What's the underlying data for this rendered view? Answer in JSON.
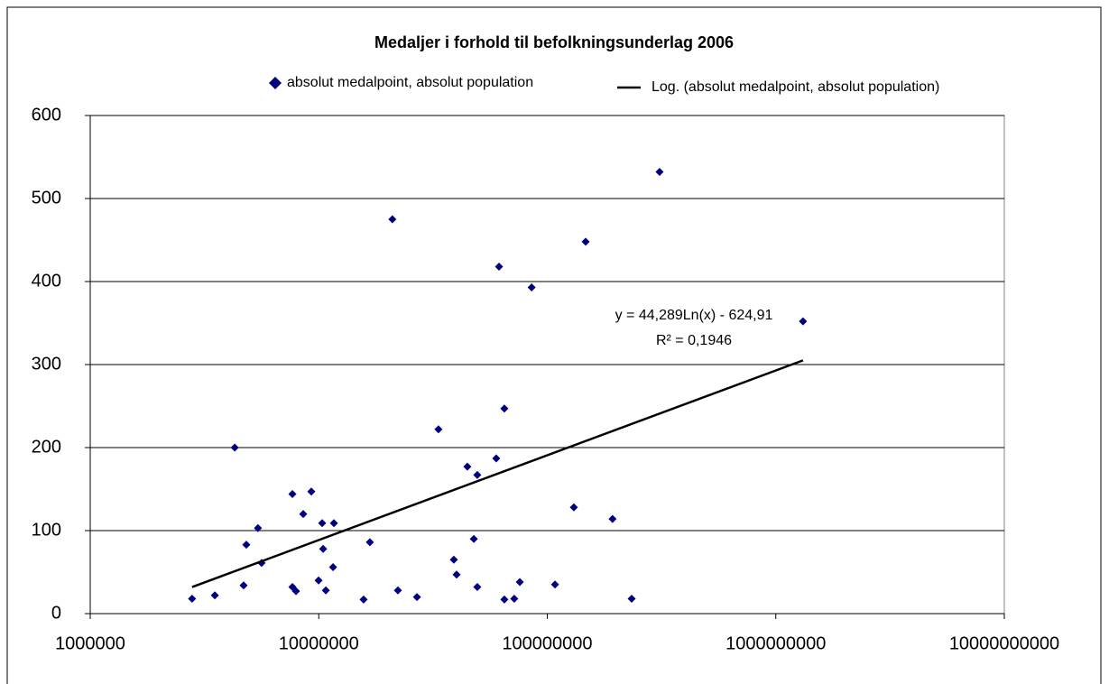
{
  "chart_data": {
    "type": "scatter",
    "title": "Medaljer i forhold til befolkningsunderlag 2006",
    "xscale": "log",
    "xlim": [
      1000000,
      10000000000
    ],
    "xticks": [
      1000000,
      10000000,
      100000000,
      1000000000,
      10000000000
    ],
    "ylim": [
      0,
      600
    ],
    "yticks": [
      0,
      100,
      200,
      300,
      400,
      500,
      600
    ],
    "grid": true,
    "legend": "top",
    "annotations": [
      "y = 44,289Ln(x) - 624,91",
      "R² = 0,1946"
    ],
    "series": [
      {
        "name": "absolut medalpoint, absolut population",
        "color": "#000080",
        "x": [
          2790000,
          3510000,
          4290000,
          4690000,
          4820000,
          5420000,
          5620000,
          7670000,
          7670000,
          7950000,
          8550000,
          9280000,
          9980000,
          10350000,
          10450000,
          10740000,
          11550000,
          11650000,
          15710000,
          16740000,
          21000000,
          22200000,
          26900000,
          33400000,
          39000000,
          40100000,
          44700000,
          47700000,
          49400000,
          49400000,
          59800000,
          61500000,
          64900000,
          64900000,
          71700000,
          75800000,
          85400000,
          108100000,
          130700000,
          147200000,
          193000000,
          234000000,
          310000000,
          1315000000
        ],
        "values": [
          18,
          22,
          200,
          34,
          83,
          103,
          61,
          144,
          32,
          27,
          120,
          147,
          40,
          109,
          78,
          28,
          56,
          109,
          17,
          86,
          475,
          28,
          20,
          222,
          65,
          47,
          177,
          90,
          167,
          32,
          187,
          418,
          17,
          247,
          18,
          38,
          393,
          35,
          128,
          448,
          114,
          18,
          532,
          352
        ]
      },
      {
        "name": "Log. (absolut medalpoint, absolut population)",
        "color": "#000000",
        "type": "line",
        "x": [
          2790000,
          1315000000
        ],
        "values": [
          32,
          305
        ]
      }
    ]
  }
}
